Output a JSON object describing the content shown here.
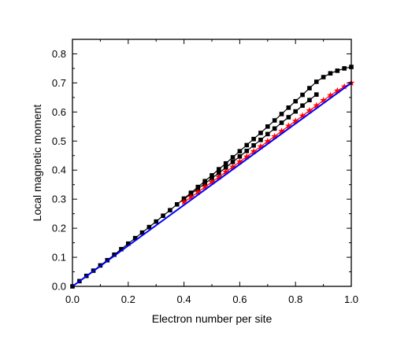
{
  "chart_data": {
    "type": "scatter",
    "title": "",
    "xlabel": "Electron number per site",
    "ylabel": "Local magnetic moment",
    "xlim": [
      0.0,
      1.0
    ],
    "ylim": [
      0.0,
      0.85
    ],
    "xticks": [
      "0.0",
      "0.2",
      "0.4",
      "0.6",
      "0.8",
      "1.0"
    ],
    "yticks": [
      "0.0",
      "0.1",
      "0.2",
      "0.3",
      "0.4",
      "0.5",
      "0.6",
      "0.7",
      "0.8"
    ],
    "xtick_values": [
      0.0,
      0.2,
      0.4,
      0.6,
      0.8,
      1.0
    ],
    "ytick_values": [
      0.0,
      0.1,
      0.2,
      0.3,
      0.4,
      0.5,
      0.6,
      0.7,
      0.8
    ],
    "grid": false,
    "series": [
      {
        "marker": "square",
        "color": "#000000",
        "x": [
          0.0,
          0.025,
          0.05,
          0.075,
          0.1,
          0.125,
          0.15,
          0.175,
          0.2,
          0.225,
          0.25,
          0.275,
          0.3,
          0.325,
          0.35,
          0.375,
          0.4,
          0.425,
          0.45,
          0.475,
          0.5,
          0.525,
          0.55,
          0.575,
          0.6,
          0.625,
          0.65,
          0.675,
          0.7,
          0.725,
          0.75,
          0.775,
          0.8,
          0.825,
          0.85,
          0.875,
          0.9,
          0.925,
          0.95,
          0.975,
          1.0
        ],
        "y": [
          0.0,
          0.018,
          0.036,
          0.054,
          0.072,
          0.09,
          0.109,
          0.128,
          0.147,
          0.166,
          0.185,
          0.204,
          0.223,
          0.243,
          0.262,
          0.282,
          0.302,
          0.322,
          0.342,
          0.362,
          0.382,
          0.403,
          0.423,
          0.444,
          0.465,
          0.486,
          0.507,
          0.528,
          0.55,
          0.571,
          0.593,
          0.615,
          0.637,
          0.659,
          0.682,
          0.704,
          0.72,
          0.733,
          0.742,
          0.75,
          0.755
        ]
      },
      {
        "marker": "square",
        "color": "#000000",
        "x": [
          0.4,
          0.425,
          0.45,
          0.475,
          0.5,
          0.525,
          0.55,
          0.575,
          0.6,
          0.625,
          0.65,
          0.675,
          0.7,
          0.725,
          0.75,
          0.775,
          0.8,
          0.825,
          0.85,
          0.875
        ],
        "y": [
          0.3,
          0.318,
          0.336,
          0.354,
          0.372,
          0.39,
          0.409,
          0.428,
          0.447,
          0.466,
          0.485,
          0.504,
          0.524,
          0.543,
          0.563,
          0.582,
          0.602,
          0.622,
          0.641,
          0.66
        ]
      },
      {
        "marker": "star",
        "color": "#ff0000",
        "x": [
          0.4,
          0.425,
          0.45,
          0.475,
          0.5,
          0.525,
          0.55,
          0.575,
          0.6,
          0.625,
          0.65,
          0.675,
          0.7,
          0.725,
          0.75,
          0.775,
          0.8,
          0.825,
          0.85,
          0.875,
          0.9,
          0.925,
          0.95,
          0.975,
          1.0
        ],
        "y": [
          0.29,
          0.307,
          0.324,
          0.342,
          0.359,
          0.376,
          0.394,
          0.411,
          0.429,
          0.446,
          0.464,
          0.481,
          0.499,
          0.516,
          0.534,
          0.552,
          0.569,
          0.587,
          0.605,
          0.622,
          0.64,
          0.657,
          0.673,
          0.687,
          0.7
        ]
      },
      {
        "marker": "line",
        "color": "#0000ff",
        "x": [
          0.0,
          1.0
        ],
        "y": [
          0.0,
          0.7
        ]
      }
    ]
  }
}
